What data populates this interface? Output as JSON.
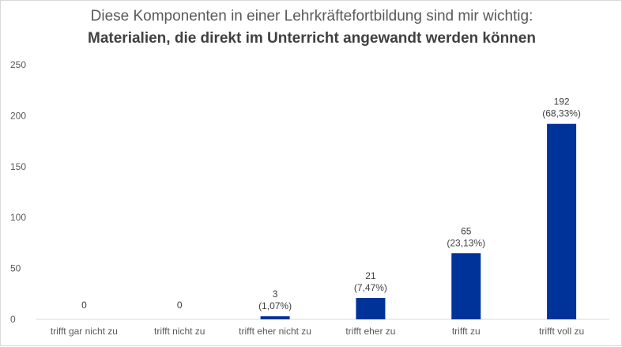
{
  "chart_data": {
    "type": "bar",
    "title": "Diese Komponenten in einer Lehrkräftefortbildung sind mir wichtig:",
    "subtitle": "Materialien, die direkt im Unterricht angewandt werden können",
    "categories": [
      "trifft gar nicht zu",
      "trifft nicht zu",
      "trifft eher nicht zu",
      "trifft eher zu",
      "trifft zu",
      "trifft voll zu"
    ],
    "values": [
      0,
      0,
      3,
      21,
      65,
      192
    ],
    "percent_labels": [
      "",
      "",
      "(1,07%)",
      "(7,47%)",
      "(23,13%)",
      "(68,33%)"
    ],
    "ylim": [
      0,
      250
    ],
    "yticks": [
      0,
      50,
      100,
      150,
      200,
      250
    ],
    "xlabel": "",
    "ylabel": "",
    "grid": false,
    "legend": "none",
    "bar_color": "#003399",
    "axis_color": "#d9d9d9"
  }
}
